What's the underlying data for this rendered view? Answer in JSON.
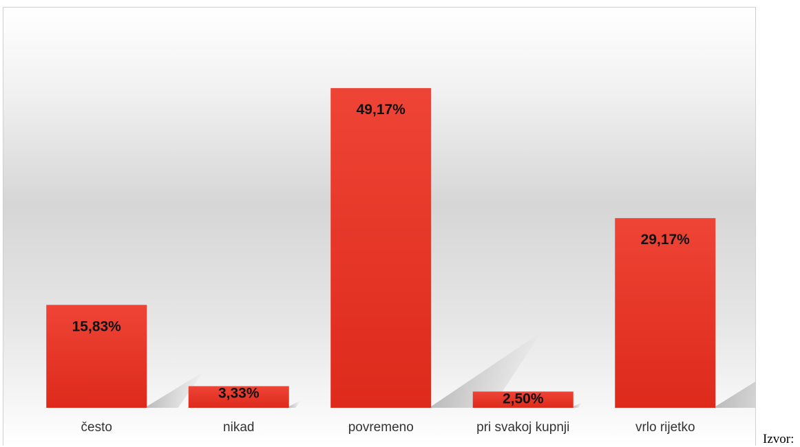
{
  "chart_data": {
    "type": "bar",
    "title": "",
    "xlabel": "",
    "ylabel": "",
    "categories": [
      "često",
      "nikad",
      "povremeno",
      "pri svakoj kupnji",
      "vrlo rijetko"
    ],
    "values": [
      15.83,
      3.33,
      49.17,
      2.5,
      29.17
    ],
    "data_labels": [
      "15,83%",
      "3,33%",
      "49,17%",
      "2,50%",
      "29,17%"
    ],
    "ylim": [
      0,
      55
    ],
    "grid": false,
    "legend": "none",
    "bar_color": "#dd2a1b",
    "bar_color_light": "#ee4436",
    "label_color": "#111111"
  },
  "source_note": "Izvor:"
}
